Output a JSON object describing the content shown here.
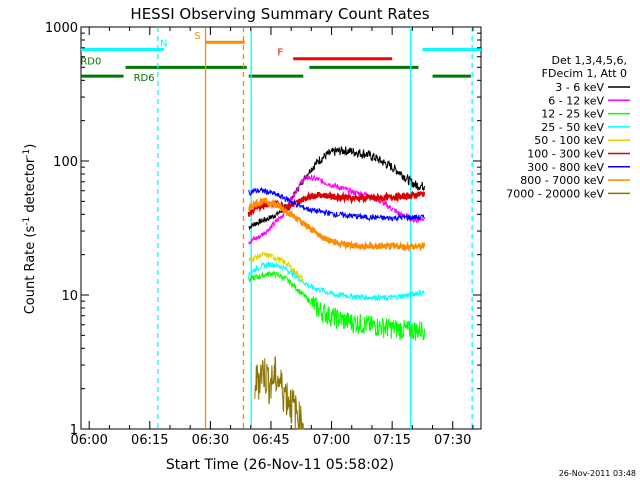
{
  "chart_data": {
    "type": "line",
    "title": "HESSI Observing Summary Count Rates",
    "xlabel": "Start Time (26-Nov-11 05:58:02)",
    "ylabel_main": "Count Rate (s",
    "ylabel_sup1": "-1",
    "ylabel_mid": " detector",
    "ylabel_sup2": "-1",
    "ylabel_end": ")",
    "yscale": "log",
    "ylim": [
      1,
      1000
    ],
    "xlim_minutes": [
      -2.03,
      97.0
    ],
    "xlim_ref": "06:00",
    "x_ticks": [
      "06:00",
      "06:15",
      "06:30",
      "06:45",
      "07:00",
      "07:15",
      "07:30"
    ],
    "x_tick_minutes": [
      0,
      15,
      30,
      45,
      60,
      75,
      90
    ],
    "y_ticks": [
      "1",
      "10",
      "100",
      "1000"
    ],
    "y_tick_values": [
      1,
      10,
      100,
      1000
    ],
    "footer_date": "26-Nov-2011 03:48",
    "legend": {
      "header1": "Det 1,3,4,5,6,",
      "header2": "FDecim 1, Att 0",
      "entries": [
        {
          "label": "3 - 6 keV",
          "color": "#000000"
        },
        {
          "label": "6 - 12 keV",
          "color": "#ff00ff"
        },
        {
          "label": "12 - 25 keV",
          "color": "#00ff00"
        },
        {
          "label": "25 - 50 keV",
          "color": "#00ffff"
        },
        {
          "label": "50 - 100 keV",
          "color": "#e6d200"
        },
        {
          "label": "100 - 300 keV",
          "color": "#dd0000"
        },
        {
          "label": "300 - 800 keV",
          "color": "#0000ff"
        },
        {
          "label": "800 - 7000 keV",
          "color": "#ff8c00"
        },
        {
          "label": "7000 - 20000 keV",
          "color": "#8b7500"
        }
      ]
    },
    "flag_lines": [
      {
        "label": "N",
        "color": "#00ffff",
        "y": 680,
        "segments": [
          [
            -2.03,
            18.5
          ],
          [
            82.5,
            97.0
          ]
        ],
        "label_minute": 17,
        "label_side": "right"
      },
      {
        "label": "S",
        "color": "#ff8c00",
        "y": 770,
        "segments": [
          [
            28.8,
            38.5
          ]
        ],
        "label_minute": 25.5,
        "label_side": "right"
      },
      {
        "label": "F",
        "color": "#ff0000",
        "y": 580,
        "segments": [
          [
            50.5,
            75.0
          ]
        ],
        "label_minute": 48.5,
        "label_side": "left"
      },
      {
        "label": "RD0",
        "color": "#007700",
        "y": 500,
        "segments": [
          [
            9.0,
            39.0
          ],
          [
            54.5,
            81.5
          ]
        ],
        "label_minute": 3.5,
        "label_side": "left"
      },
      {
        "label": "RD6",
        "color": "#007700",
        "y": 430,
        "segments": [
          [
            -2.03,
            8.5
          ],
          [
            39.5,
            53.0
          ],
          [
            85.0,
            94.5
          ]
        ],
        "label_minute": 10.5,
        "label_side": "right"
      }
    ],
    "vertical_lines": [
      {
        "minute": 17.0,
        "color": "#00ffff",
        "style": "dashed"
      },
      {
        "minute": 28.8,
        "color": "#ff8c00",
        "style": "solid"
      },
      {
        "minute": 38.2,
        "color": "#ff8c00",
        "style": "dashed"
      },
      {
        "minute": 40.1,
        "color": "#00ffff",
        "style": "solid"
      },
      {
        "minute": 79.6,
        "color": "#00ffff",
        "style": "solid"
      },
      {
        "minute": 94.8,
        "color": "#00ffff",
        "style": "dashed"
      }
    ],
    "series": [
      {
        "name": "3 - 6 keV",
        "color": "#000000",
        "x": [
          39.5,
          41,
          43,
          45,
          47,
          49,
          51,
          53,
          55,
          57,
          59,
          61,
          63,
          65,
          67,
          69,
          71,
          73,
          75,
          77,
          79,
          81,
          83
        ],
        "y": [
          32,
          34,
          36,
          38,
          41,
          47,
          58,
          72,
          88,
          102,
          112,
          118,
          120,
          118,
          115,
          112,
          105,
          97,
          90,
          82,
          72,
          66,
          65
        ]
      },
      {
        "name": "6 - 12 keV",
        "color": "#ff00ff",
        "x": [
          39.5,
          42,
          45,
          48,
          50,
          52,
          53.5,
          55,
          57,
          59,
          61,
          63,
          65,
          67,
          69,
          71,
          73,
          75,
          77,
          79,
          81,
          83
        ],
        "y": [
          25,
          27,
          32,
          40,
          52,
          66,
          75,
          75,
          72,
          68,
          65,
          62,
          59,
          57,
          56,
          52,
          48,
          44,
          40,
          38,
          36,
          38
        ]
      },
      {
        "name": "12 - 25 keV",
        "color": "#00ff00",
        "x": [
          39.5,
          41,
          43,
          45,
          47,
          49,
          51,
          53,
          55,
          57,
          59,
          61,
          63,
          65,
          67,
          69,
          71,
          73,
          75,
          77,
          79,
          81,
          83
        ],
        "y": [
          13,
          13.5,
          14,
          14.5,
          14,
          13,
          11.5,
          10,
          8.8,
          7.8,
          7.2,
          6.8,
          6.5,
          6.3,
          6.2,
          6.0,
          5.9,
          5.8,
          5.7,
          5.6,
          5.5,
          5.5,
          5.6
        ]
      },
      {
        "name": "25 - 50 keV",
        "color": "#00ffff",
        "x": [
          39.5,
          41,
          43,
          45,
          47,
          49,
          51,
          53,
          55,
          57,
          59,
          61,
          63,
          65,
          67,
          69,
          71,
          73,
          75,
          77,
          79,
          81,
          83
        ],
        "y": [
          14,
          15.5,
          16.5,
          17,
          16.5,
          15.5,
          14,
          12.5,
          11.5,
          11,
          10.5,
          10,
          10,
          9.8,
          9.7,
          9.6,
          9.6,
          9.5,
          9.6,
          9.8,
          10,
          10.3,
          10.5
        ]
      },
      {
        "name": "50 - 100 keV",
        "color": "#e6d200",
        "x": [
          39.5,
          41,
          43,
          45,
          47,
          49,
          51,
          53
        ],
        "y": [
          18,
          19,
          20,
          19.5,
          18.5,
          17,
          15,
          13
        ]
      },
      {
        "name": "100 - 300 keV",
        "color": "#dd0000",
        "x": [
          39.5,
          41,
          43,
          45,
          47,
          49,
          51,
          53,
          55,
          57,
          59,
          61,
          63,
          65,
          67,
          69,
          71,
          73,
          75,
          77,
          79,
          81,
          83
        ],
        "y": [
          40,
          44,
          47,
          48,
          47,
          45,
          48,
          52,
          55,
          56,
          55,
          54,
          54,
          53,
          53,
          53,
          53,
          53,
          54,
          54,
          55,
          56,
          57
        ]
      },
      {
        "name": "300 - 800 keV",
        "color": "#0000ff",
        "x": [
          39.5,
          41,
          43,
          45,
          47,
          49,
          51,
          53,
          55,
          57,
          59,
          61,
          63,
          65,
          67,
          69,
          71,
          73,
          75,
          77,
          79,
          81,
          83
        ],
        "y": [
          58,
          60,
          60,
          58,
          55,
          52,
          48,
          45,
          43,
          42,
          41,
          40,
          39.5,
          39,
          38.5,
          38,
          38,
          37.5,
          37.5,
          38,
          38,
          38,
          38
        ]
      },
      {
        "name": "800 - 7000 keV",
        "color": "#ff8c00",
        "x": [
          39.5,
          41,
          43,
          45,
          47,
          49,
          51,
          53,
          55,
          57,
          59,
          61,
          63,
          65,
          67,
          69,
          71,
          73,
          75,
          77,
          79,
          81,
          83
        ],
        "y": [
          45,
          48,
          50,
          49,
          46,
          42,
          38,
          34,
          31,
          28,
          26,
          25,
          24,
          23.5,
          23,
          23,
          23,
          23,
          23,
          23,
          23,
          23,
          23
        ]
      },
      {
        "name": "7000 - 20000 keV",
        "color": "#8b7500",
        "x": [
          41,
          42,
          43,
          44,
          45,
          46,
          47,
          48,
          49,
          50,
          51,
          52,
          53
        ],
        "y": [
          2.2,
          2.5,
          2.8,
          2.5,
          2.2,
          2.6,
          2.3,
          2.0,
          1.8,
          1.6,
          1.4,
          1.2,
          1.1
        ]
      }
    ]
  }
}
